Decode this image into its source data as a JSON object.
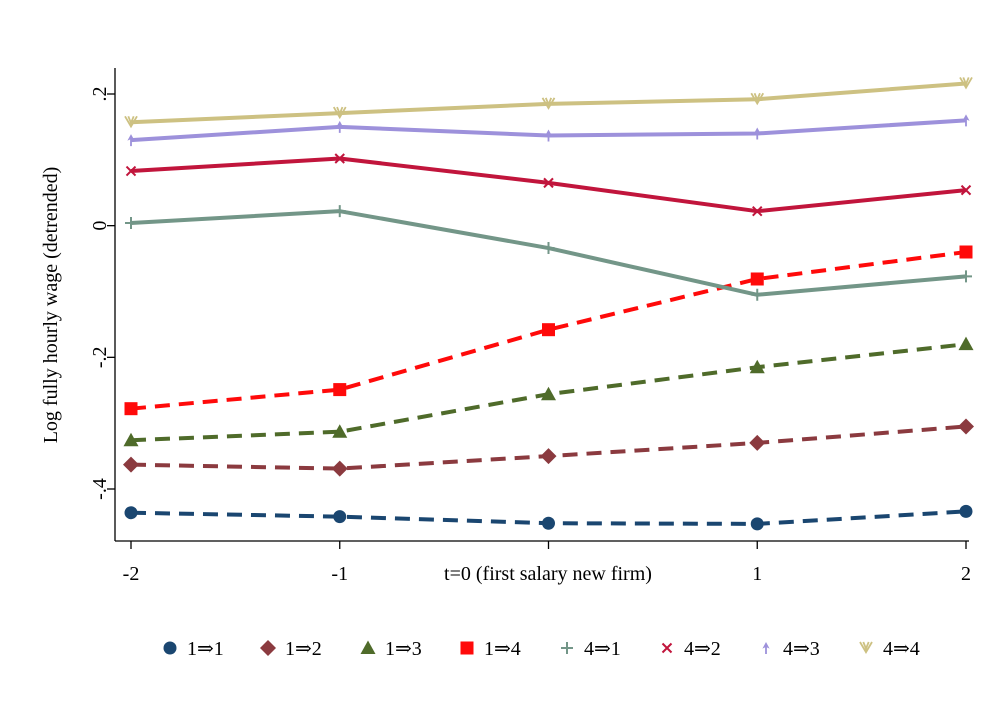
{
  "chart_data": {
    "type": "line",
    "title": "",
    "xlabel": "t=0 (first salary new firm)",
    "ylabel": "Log fully hourly wage (detrended)",
    "x": [
      -2,
      -1,
      0,
      1,
      2
    ],
    "x_tick_labels": [
      "-2",
      "-1",
      "",
      "1",
      "2"
    ],
    "xlim": [
      -2,
      2
    ],
    "y_ticks": [
      -0.4,
      -0.2,
      0,
      0.2
    ],
    "y_tick_labels": [
      "-.4",
      "-.2",
      "0",
      ".2"
    ],
    "ylim": [
      -0.48,
      0.24
    ],
    "grid": false,
    "legend_position": "bottom",
    "series": [
      {
        "name": "1⇒1",
        "color": "#1a4670",
        "dash": true,
        "marker": "circle",
        "values": [
          -0.436,
          -0.442,
          -0.452,
          -0.453,
          -0.434
        ]
      },
      {
        "name": "1⇒2",
        "color": "#8b3a3f",
        "dash": true,
        "marker": "diamond",
        "values": [
          -0.363,
          -0.369,
          -0.35,
          -0.33,
          -0.305
        ]
      },
      {
        "name": "1⇒3",
        "color": "#4f6b2a",
        "dash": true,
        "marker": "triangle",
        "values": [
          -0.326,
          -0.313,
          -0.256,
          -0.215,
          -0.18
        ]
      },
      {
        "name": "1⇒4",
        "color": "#ff0a0a",
        "dash": true,
        "marker": "square",
        "values": [
          -0.278,
          -0.249,
          -0.158,
          -0.081,
          -0.04
        ]
      },
      {
        "name": "4⇒1",
        "color": "#739688",
        "dash": false,
        "marker": "plus",
        "values": [
          0.004,
          0.022,
          -0.034,
          -0.105,
          -0.077
        ]
      },
      {
        "name": "4⇒2",
        "color": "#c1153c",
        "dash": false,
        "marker": "x",
        "values": [
          0.083,
          0.102,
          0.065,
          0.022,
          0.054
        ]
      },
      {
        "name": "4⇒3",
        "color": "#9d91db",
        "dash": false,
        "marker": "arrow",
        "values": [
          0.13,
          0.15,
          0.137,
          0.14,
          0.16
        ]
      },
      {
        "name": "4⇒4",
        "color": "#cdc182",
        "dash": false,
        "marker": "v",
        "values": [
          0.157,
          0.171,
          0.185,
          0.192,
          0.216
        ]
      }
    ]
  }
}
